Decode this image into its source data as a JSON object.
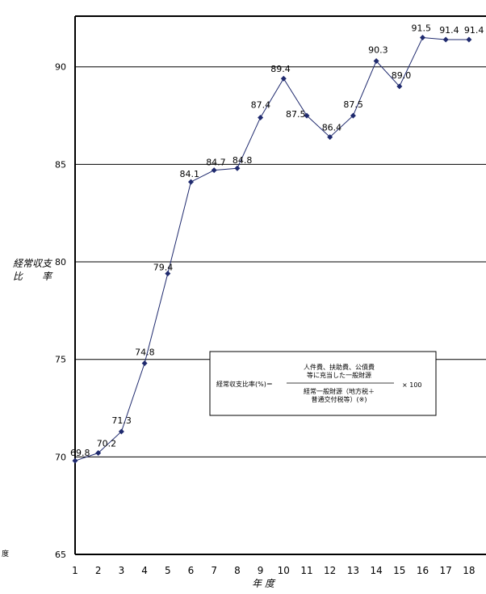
{
  "chart_data": {
    "type": "line",
    "title": "",
    "xlabel": "年 度",
    "ylabel": "経常収支比 率",
    "ylabel_lines": [
      "経常収支",
      "比　　率"
    ],
    "x": [
      1,
      2,
      3,
      4,
      5,
      6,
      7,
      8,
      9,
      10,
      11,
      12,
      13,
      14,
      15,
      16,
      17,
      18
    ],
    "x_tick_labels": [
      "1",
      "2",
      "3",
      "4",
      "5",
      "6",
      "7",
      "8",
      "9",
      "10",
      "11",
      "12",
      "13",
      "14",
      "15",
      "16",
      "17",
      "18"
    ],
    "y_ticks": [
      65,
      70,
      75,
      80,
      85,
      90
    ],
    "y_tick_labels": [
      "65",
      "70",
      "75",
      "80",
      "85",
      "90"
    ],
    "ylim": [
      65,
      92.6
    ],
    "grid": true,
    "legend": "none",
    "series": [
      {
        "values": [
          69.8,
          70.2,
          71.3,
          74.8,
          79.4,
          84.1,
          84.7,
          84.8,
          87.4,
          89.4,
          87.5,
          86.4,
          87.5,
          90.3,
          89.0,
          91.5,
          91.4,
          91.4
        ],
        "labels": [
          "69.8",
          "70.2",
          "71.3",
          "74.8",
          "79.4",
          "84.1",
          "84.7",
          "84.8",
          "87.4",
          "89.4",
          "87.5",
          "86.4",
          "87.5",
          "90.3",
          "89.0",
          "91.5",
          "91.4",
          "91.4"
        ],
        "color": "#1f2a6e"
      }
    ],
    "formula_box": {
      "lhs": "経常収支比率(%)＝",
      "numerator_lines": [
        "人件費、扶助費、公債費",
        "等に充当した一般財源"
      ],
      "denominator_lines": [
        "経常一般財源（地方税＋",
        "普通交付税等）(※)"
      ],
      "multiplier": "× 100"
    },
    "left_cut_label": "度",
    "colors": {
      "line": "#1f2a6e",
      "marker": "#1f2a6e",
      "axis": "#000000"
    }
  }
}
